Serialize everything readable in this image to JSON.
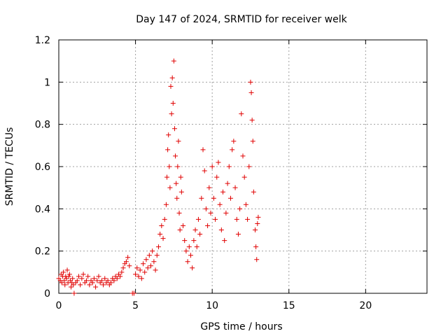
{
  "chart_data": {
    "type": "scatter",
    "title": "Day 147 of 2024, SRMTID for receiver welk",
    "xlabel": "GPS time / hours",
    "ylabel": "SRMTID / TECUs",
    "xlim": [
      0,
      24
    ],
    "ylim": [
      0,
      1.2
    ],
    "xticks": [
      0,
      5,
      10,
      15,
      20
    ],
    "xtick_labels": [
      "0",
      "5",
      "10",
      "15",
      "20"
    ],
    "yticks": [
      0,
      0.2,
      0.4,
      0.6,
      0.8,
      1.0,
      1.2
    ],
    "ytick_labels": [
      "0",
      "0.2",
      "0.4",
      "0.6",
      "0.8",
      "1",
      "1.2"
    ],
    "grid": true,
    "marker": "+",
    "color": "#e00000",
    "series": [
      {
        "name": "SRMTID",
        "points": [
          [
            0.0,
            0.07
          ],
          [
            0.1,
            0.06
          ],
          [
            0.15,
            0.09
          ],
          [
            0.2,
            0.05
          ],
          [
            0.25,
            0.08
          ],
          [
            0.3,
            0.1
          ],
          [
            0.35,
            0.06
          ],
          [
            0.4,
            0.04
          ],
          [
            0.45,
            0.08
          ],
          [
            0.5,
            0.07
          ],
          [
            0.55,
            0.11
          ],
          [
            0.6,
            0.05
          ],
          [
            0.65,
            0.08
          ],
          [
            0.7,
            0.09
          ],
          [
            0.75,
            0.06
          ],
          [
            0.8,
            0.03
          ],
          [
            0.85,
            0.05
          ],
          [
            0.9,
            0.07
          ],
          [
            0.95,
            0.04
          ],
          [
            1.0,
            0.0
          ],
          [
            1.1,
            0.05
          ],
          [
            1.2,
            0.06
          ],
          [
            1.3,
            0.08
          ],
          [
            1.4,
            0.04
          ],
          [
            1.5,
            0.07
          ],
          [
            1.6,
            0.09
          ],
          [
            1.7,
            0.05
          ],
          [
            1.8,
            0.06
          ],
          [
            1.9,
            0.08
          ],
          [
            2.0,
            0.04
          ],
          [
            2.1,
            0.06
          ],
          [
            2.2,
            0.05
          ],
          [
            2.3,
            0.07
          ],
          [
            2.4,
            0.03
          ],
          [
            2.5,
            0.06
          ],
          [
            2.6,
            0.08
          ],
          [
            2.7,
            0.05
          ],
          [
            2.8,
            0.06
          ],
          [
            2.9,
            0.04
          ],
          [
            3.0,
            0.07
          ],
          [
            3.1,
            0.05
          ],
          [
            3.2,
            0.06
          ],
          [
            3.3,
            0.04
          ],
          [
            3.4,
            0.05
          ],
          [
            3.5,
            0.07
          ],
          [
            3.6,
            0.06
          ],
          [
            3.7,
            0.08
          ],
          [
            3.8,
            0.07
          ],
          [
            3.9,
            0.09
          ],
          [
            4.0,
            0.08
          ],
          [
            4.1,
            0.1
          ],
          [
            4.2,
            0.12
          ],
          [
            4.3,
            0.14
          ],
          [
            4.4,
            0.15
          ],
          [
            4.5,
            0.17
          ],
          [
            4.6,
            0.13
          ],
          [
            4.8,
            0.0
          ],
          [
            4.9,
            0.0
          ],
          [
            5.0,
            0.09
          ],
          [
            5.1,
            0.12
          ],
          [
            5.2,
            0.08
          ],
          [
            5.3,
            0.11
          ],
          [
            5.4,
            0.07
          ],
          [
            5.5,
            0.14
          ],
          [
            5.6,
            0.1
          ],
          [
            5.7,
            0.16
          ],
          [
            5.8,
            0.12
          ],
          [
            5.9,
            0.18
          ],
          [
            6.0,
            0.13
          ],
          [
            6.1,
            0.2
          ],
          [
            6.2,
            0.15
          ],
          [
            6.3,
            0.11
          ],
          [
            6.4,
            0.18
          ],
          [
            6.5,
            0.22
          ],
          [
            6.6,
            0.28
          ],
          [
            6.7,
            0.32
          ],
          [
            6.8,
            0.26
          ],
          [
            6.9,
            0.35
          ],
          [
            7.0,
            0.42
          ],
          [
            7.05,
            0.55
          ],
          [
            7.1,
            0.68
          ],
          [
            7.15,
            0.75
          ],
          [
            7.2,
            0.6
          ],
          [
            7.25,
            0.5
          ],
          [
            7.3,
            0.98
          ],
          [
            7.35,
            0.85
          ],
          [
            7.4,
            1.02
          ],
          [
            7.45,
            0.9
          ],
          [
            7.5,
            1.1
          ],
          [
            7.55,
            0.78
          ],
          [
            7.6,
            0.65
          ],
          [
            7.65,
            0.52
          ],
          [
            7.7,
            0.45
          ],
          [
            7.75,
            0.6
          ],
          [
            7.8,
            0.72
          ],
          [
            7.85,
            0.38
          ],
          [
            7.9,
            0.3
          ],
          [
            7.95,
            0.55
          ],
          [
            8.0,
            0.48
          ],
          [
            8.1,
            0.32
          ],
          [
            8.2,
            0.25
          ],
          [
            8.3,
            0.2
          ],
          [
            8.4,
            0.15
          ],
          [
            8.5,
            0.22
          ],
          [
            8.6,
            0.18
          ],
          [
            8.7,
            0.12
          ],
          [
            8.8,
            0.25
          ],
          [
            8.9,
            0.3
          ],
          [
            9.0,
            0.22
          ],
          [
            9.1,
            0.35
          ],
          [
            9.2,
            0.28
          ],
          [
            9.3,
            0.45
          ],
          [
            9.4,
            0.68
          ],
          [
            9.5,
            0.58
          ],
          [
            9.6,
            0.4
          ],
          [
            9.7,
            0.32
          ],
          [
            9.8,
            0.5
          ],
          [
            9.9,
            0.38
          ],
          [
            10.0,
            0.6
          ],
          [
            10.1,
            0.45
          ],
          [
            10.2,
            0.35
          ],
          [
            10.3,
            0.55
          ],
          [
            10.4,
            0.62
          ],
          [
            10.5,
            0.42
          ],
          [
            10.6,
            0.3
          ],
          [
            10.7,
            0.48
          ],
          [
            10.8,
            0.25
          ],
          [
            10.9,
            0.38
          ],
          [
            11.0,
            0.52
          ],
          [
            11.1,
            0.6
          ],
          [
            11.2,
            0.45
          ],
          [
            11.3,
            0.68
          ],
          [
            11.4,
            0.72
          ],
          [
            11.5,
            0.5
          ],
          [
            11.6,
            0.35
          ],
          [
            11.7,
            0.28
          ],
          [
            11.8,
            0.4
          ],
          [
            11.9,
            0.85
          ],
          [
            12.0,
            0.65
          ],
          [
            12.1,
            0.55
          ],
          [
            12.2,
            0.42
          ],
          [
            12.3,
            0.35
          ],
          [
            12.4,
            0.6
          ],
          [
            12.5,
            1.0
          ],
          [
            12.55,
            0.95
          ],
          [
            12.6,
            0.82
          ],
          [
            12.65,
            0.72
          ],
          [
            12.7,
            0.48
          ],
          [
            12.8,
            0.3
          ],
          [
            12.85,
            0.22
          ],
          [
            12.9,
            0.16
          ],
          [
            12.95,
            0.33
          ],
          [
            13.0,
            0.36
          ]
        ]
      }
    ]
  }
}
